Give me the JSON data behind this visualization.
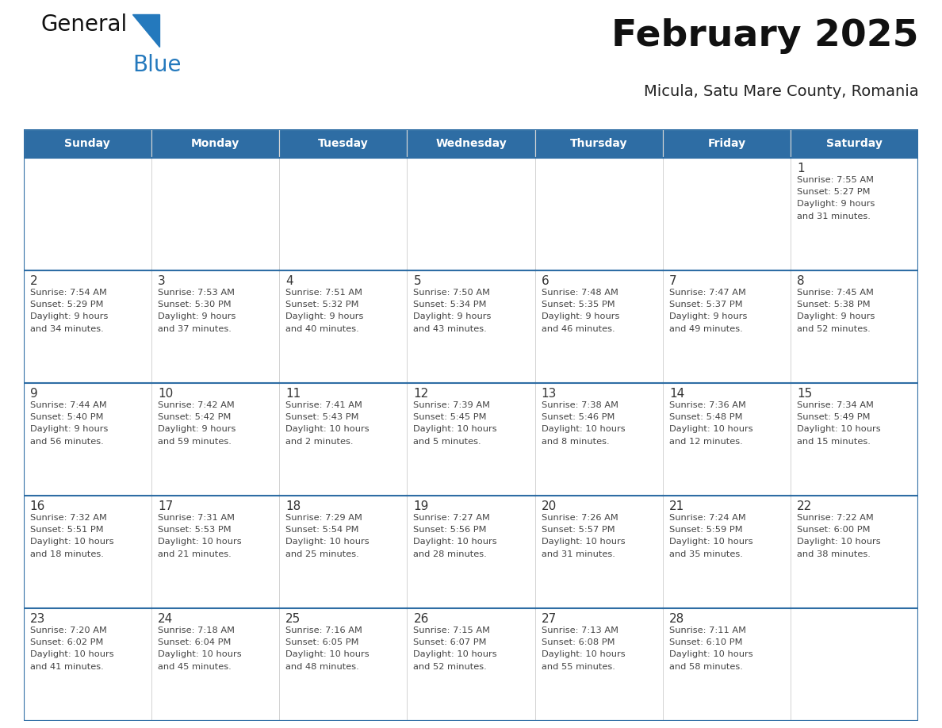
{
  "title": "February 2025",
  "subtitle": "Micula, Satu Mare County, Romania",
  "days_of_week": [
    "Sunday",
    "Monday",
    "Tuesday",
    "Wednesday",
    "Thursday",
    "Friday",
    "Saturday"
  ],
  "header_bg": "#2E6DA4",
  "header_text": "#FFFFFF",
  "cell_bg": "#FFFFFF",
  "cell_bg_last_row": "#F2F2F2",
  "border_color": "#2E6DA4",
  "day_number_color": "#333333",
  "text_color": "#444444",
  "logo_general_color": "#111111",
  "logo_blue_color": "#2479BD",
  "weeks": [
    [
      null,
      null,
      null,
      null,
      null,
      null,
      1
    ],
    [
      2,
      3,
      4,
      5,
      6,
      7,
      8
    ],
    [
      9,
      10,
      11,
      12,
      13,
      14,
      15
    ],
    [
      16,
      17,
      18,
      19,
      20,
      21,
      22
    ],
    [
      23,
      24,
      25,
      26,
      27,
      28,
      null
    ]
  ],
  "cell_data": {
    "1": {
      "sunrise": "7:55 AM",
      "sunset": "5:27 PM",
      "daylight_line1": "Daylight: 9 hours",
      "daylight_line2": "and 31 minutes."
    },
    "2": {
      "sunrise": "7:54 AM",
      "sunset": "5:29 PM",
      "daylight_line1": "Daylight: 9 hours",
      "daylight_line2": "and 34 minutes."
    },
    "3": {
      "sunrise": "7:53 AM",
      "sunset": "5:30 PM",
      "daylight_line1": "Daylight: 9 hours",
      "daylight_line2": "and 37 minutes."
    },
    "4": {
      "sunrise": "7:51 AM",
      "sunset": "5:32 PM",
      "daylight_line1": "Daylight: 9 hours",
      "daylight_line2": "and 40 minutes."
    },
    "5": {
      "sunrise": "7:50 AM",
      "sunset": "5:34 PM",
      "daylight_line1": "Daylight: 9 hours",
      "daylight_line2": "and 43 minutes."
    },
    "6": {
      "sunrise": "7:48 AM",
      "sunset": "5:35 PM",
      "daylight_line1": "Daylight: 9 hours",
      "daylight_line2": "and 46 minutes."
    },
    "7": {
      "sunrise": "7:47 AM",
      "sunset": "5:37 PM",
      "daylight_line1": "Daylight: 9 hours",
      "daylight_line2": "and 49 minutes."
    },
    "8": {
      "sunrise": "7:45 AM",
      "sunset": "5:38 PM",
      "daylight_line1": "Daylight: 9 hours",
      "daylight_line2": "and 52 minutes."
    },
    "9": {
      "sunrise": "7:44 AM",
      "sunset": "5:40 PM",
      "daylight_line1": "Daylight: 9 hours",
      "daylight_line2": "and 56 minutes."
    },
    "10": {
      "sunrise": "7:42 AM",
      "sunset": "5:42 PM",
      "daylight_line1": "Daylight: 9 hours",
      "daylight_line2": "and 59 minutes."
    },
    "11": {
      "sunrise": "7:41 AM",
      "sunset": "5:43 PM",
      "daylight_line1": "Daylight: 10 hours",
      "daylight_line2": "and 2 minutes."
    },
    "12": {
      "sunrise": "7:39 AM",
      "sunset": "5:45 PM",
      "daylight_line1": "Daylight: 10 hours",
      "daylight_line2": "and 5 minutes."
    },
    "13": {
      "sunrise": "7:38 AM",
      "sunset": "5:46 PM",
      "daylight_line1": "Daylight: 10 hours",
      "daylight_line2": "and 8 minutes."
    },
    "14": {
      "sunrise": "7:36 AM",
      "sunset": "5:48 PM",
      "daylight_line1": "Daylight: 10 hours",
      "daylight_line2": "and 12 minutes."
    },
    "15": {
      "sunrise": "7:34 AM",
      "sunset": "5:49 PM",
      "daylight_line1": "Daylight: 10 hours",
      "daylight_line2": "and 15 minutes."
    },
    "16": {
      "sunrise": "7:32 AM",
      "sunset": "5:51 PM",
      "daylight_line1": "Daylight: 10 hours",
      "daylight_line2": "and 18 minutes."
    },
    "17": {
      "sunrise": "7:31 AM",
      "sunset": "5:53 PM",
      "daylight_line1": "Daylight: 10 hours",
      "daylight_line2": "and 21 minutes."
    },
    "18": {
      "sunrise": "7:29 AM",
      "sunset": "5:54 PM",
      "daylight_line1": "Daylight: 10 hours",
      "daylight_line2": "and 25 minutes."
    },
    "19": {
      "sunrise": "7:27 AM",
      "sunset": "5:56 PM",
      "daylight_line1": "Daylight: 10 hours",
      "daylight_line2": "and 28 minutes."
    },
    "20": {
      "sunrise": "7:26 AM",
      "sunset": "5:57 PM",
      "daylight_line1": "Daylight: 10 hours",
      "daylight_line2": "and 31 minutes."
    },
    "21": {
      "sunrise": "7:24 AM",
      "sunset": "5:59 PM",
      "daylight_line1": "Daylight: 10 hours",
      "daylight_line2": "and 35 minutes."
    },
    "22": {
      "sunrise": "7:22 AM",
      "sunset": "6:00 PM",
      "daylight_line1": "Daylight: 10 hours",
      "daylight_line2": "and 38 minutes."
    },
    "23": {
      "sunrise": "7:20 AM",
      "sunset": "6:02 PM",
      "daylight_line1": "Daylight: 10 hours",
      "daylight_line2": "and 41 minutes."
    },
    "24": {
      "sunrise": "7:18 AM",
      "sunset": "6:04 PM",
      "daylight_line1": "Daylight: 10 hours",
      "daylight_line2": "and 45 minutes."
    },
    "25": {
      "sunrise": "7:16 AM",
      "sunset": "6:05 PM",
      "daylight_line1": "Daylight: 10 hours",
      "daylight_line2": "and 48 minutes."
    },
    "26": {
      "sunrise": "7:15 AM",
      "sunset": "6:07 PM",
      "daylight_line1": "Daylight: 10 hours",
      "daylight_line2": "and 52 minutes."
    },
    "27": {
      "sunrise": "7:13 AM",
      "sunset": "6:08 PM",
      "daylight_line1": "Daylight: 10 hours",
      "daylight_line2": "and 55 minutes."
    },
    "28": {
      "sunrise": "7:11 AM",
      "sunset": "6:10 PM",
      "daylight_line1": "Daylight: 10 hours",
      "daylight_line2": "and 58 minutes."
    }
  }
}
